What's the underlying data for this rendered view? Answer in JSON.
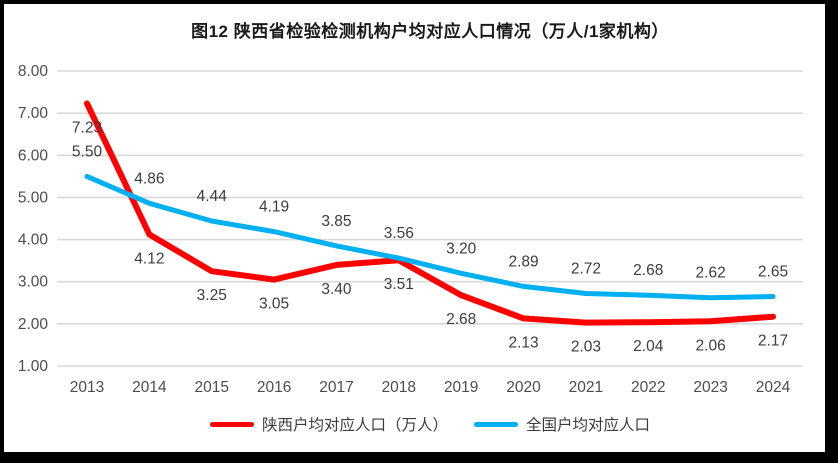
{
  "page": {
    "title": "图12 陕西省检验检测机构户均对应人口情况（万人/1家机构）"
  },
  "chart_data": {
    "type": "line",
    "title": "图12 陕西省检验检测机构户均对应人口情况（万人/1家机构）",
    "categories": [
      "2013",
      "2014",
      "2015",
      "2016",
      "2017",
      "2018",
      "2019",
      "2020",
      "2021",
      "2022",
      "2023",
      "2024"
    ],
    "series": [
      {
        "name": "陕西户均对应人口（万人）",
        "color": "#FF0000",
        "label_position": "below",
        "values": [
          7.23,
          4.12,
          3.25,
          3.05,
          3.4,
          3.51,
          2.68,
          2.13,
          2.03,
          2.04,
          2.06,
          2.17
        ]
      },
      {
        "name": "全国户均对应人口",
        "color": "#00B0F0",
        "label_position": "above",
        "values": [
          5.5,
          4.86,
          4.44,
          4.19,
          3.85,
          3.56,
          3.2,
          2.89,
          2.72,
          2.68,
          2.62,
          2.65
        ]
      }
    ],
    "xlabel": "",
    "ylabel": "",
    "ylim": [
      1.0,
      8.0
    ],
    "ytick_step": 1.0,
    "ytick_labels": [
      "1.00",
      "2.00",
      "3.00",
      "4.00",
      "5.00",
      "6.00",
      "7.00",
      "8.00"
    ],
    "value_label_format": "2-decimals",
    "grid": "horizontal",
    "legend_position": "bottom",
    "colors": {
      "gridline": "#D9D9D9",
      "tick_text": "#4d4d4d",
      "data_label_text": "#3d3d3d",
      "title_text": "#1a1a1a",
      "background": "#ffffff",
      "frame_border": "#000000"
    }
  }
}
